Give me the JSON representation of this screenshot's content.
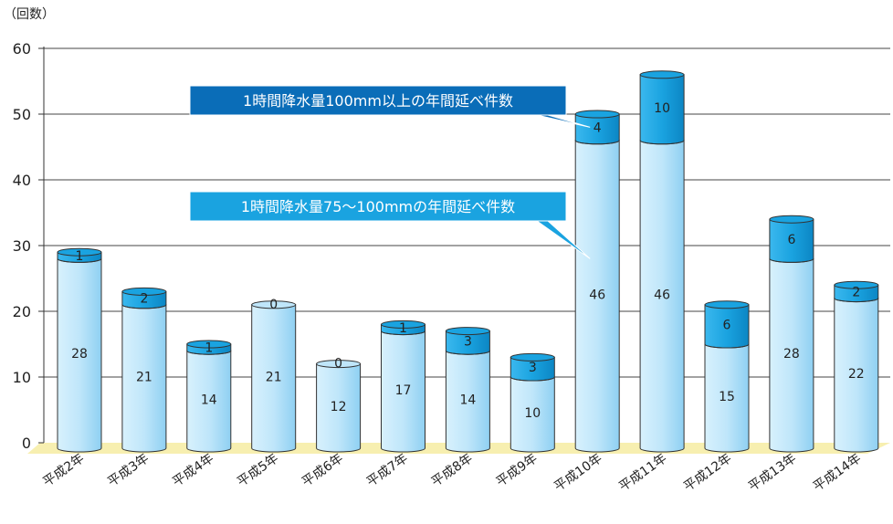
{
  "chart_data": {
    "type": "bar",
    "stacked": true,
    "ylabel": "（回数）",
    "ylim": [
      0,
      60
    ],
    "yticks": [
      0,
      10,
      20,
      30,
      40,
      50,
      60
    ],
    "grid": true,
    "categories": [
      "平成2年",
      "平成3年",
      "平成4年",
      "平成5年",
      "平成6年",
      "平成7年",
      "平成8年",
      "平成9年",
      "平成10年",
      "平成11年",
      "平成12年",
      "平成13年",
      "平成14年"
    ],
    "series": [
      {
        "name": "1時間降水量75〜100mmの年間延べ件数",
        "color": "#bfe6fa",
        "values": [
          28,
          21,
          14,
          21,
          12,
          17,
          14,
          10,
          46,
          46,
          15,
          28,
          22
        ]
      },
      {
        "name": "1時間降水量100mm以上の年間延べ件数",
        "color": "#1aa3e0",
        "values": [
          1,
          2,
          1,
          0,
          0,
          1,
          3,
          3,
          4,
          10,
          6,
          6,
          2
        ]
      }
    ],
    "base_color": "#f7efb0"
  }
}
